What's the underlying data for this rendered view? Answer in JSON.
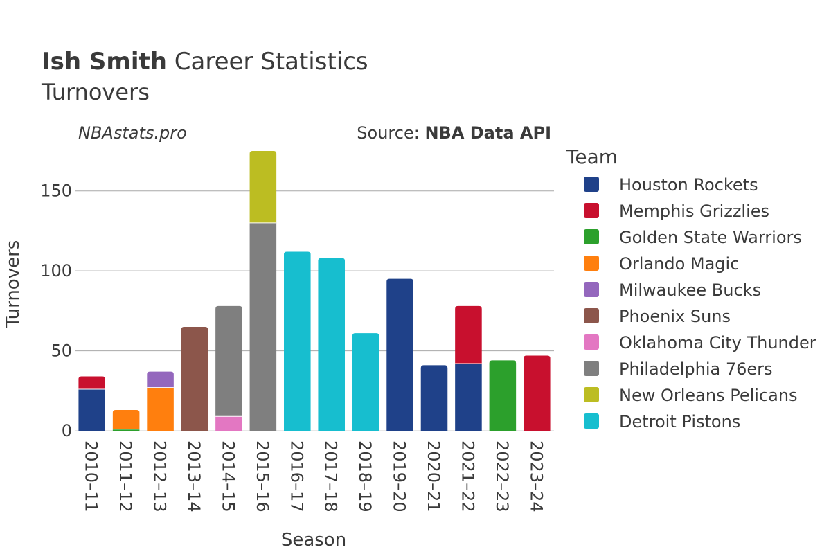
{
  "header": {
    "title_bold": "Ish Smith",
    "title_rest": " Career Statistics",
    "subtitle": "Turnovers",
    "credit": "NBAstats.pro",
    "source_prefix": "Source: ",
    "source_bold": "NBA Data API"
  },
  "legend": {
    "title": "Team"
  },
  "chart_data": {
    "type": "bar",
    "stacked": true,
    "xlabel": "Season",
    "ylabel": "Turnovers",
    "ylim": [
      0,
      175
    ],
    "yticks": [
      0,
      50,
      100,
      150
    ],
    "grid": true,
    "legend_position": "right",
    "categories": [
      "2010–11",
      "2011–12",
      "2012–13",
      "2013–14",
      "2014–15",
      "2015–16",
      "2016–17",
      "2017–18",
      "2018–19",
      "2019–20",
      "2020–21",
      "2021–22",
      "2022–23",
      "2023–24"
    ],
    "series": [
      {
        "name": "Houston Rockets",
        "color": "#1f4189",
        "values": [
          26,
          0,
          0,
          0,
          0,
          0,
          0,
          0,
          0,
          95,
          41,
          42,
          0,
          0
        ]
      },
      {
        "name": "Memphis Grizzlies",
        "color": "#c8102e",
        "values": [
          8,
          0,
          0,
          0,
          0,
          0,
          0,
          0,
          0,
          0,
          0,
          36,
          0,
          47
        ]
      },
      {
        "name": "Golden State Warriors",
        "color": "#2ca02c",
        "values": [
          0,
          1,
          0,
          0,
          0,
          0,
          0,
          0,
          0,
          0,
          0,
          0,
          44,
          0
        ]
      },
      {
        "name": "Orlando Magic",
        "color": "#ff7f0e",
        "values": [
          0,
          12,
          27,
          0,
          0,
          0,
          0,
          0,
          0,
          0,
          0,
          0,
          0,
          0
        ]
      },
      {
        "name": "Milwaukee Bucks",
        "color": "#9467bd",
        "values": [
          0,
          0,
          10,
          0,
          0,
          0,
          0,
          0,
          0,
          0,
          0,
          0,
          0,
          0
        ]
      },
      {
        "name": "Phoenix Suns",
        "color": "#8c564b",
        "values": [
          0,
          0,
          0,
          65,
          0,
          0,
          0,
          0,
          0,
          0,
          0,
          0,
          0,
          0
        ]
      },
      {
        "name": "Oklahoma City Thunder",
        "color": "#e377c2",
        "values": [
          0,
          0,
          0,
          0,
          9,
          0,
          0,
          0,
          0,
          0,
          0,
          0,
          0,
          0
        ]
      },
      {
        "name": "Philadelphia 76ers",
        "color": "#7f7f7f",
        "values": [
          0,
          0,
          0,
          0,
          69,
          130,
          0,
          0,
          0,
          0,
          0,
          0,
          0,
          0
        ]
      },
      {
        "name": "New Orleans Pelicans",
        "color": "#bcbd22",
        "values": [
          0,
          0,
          0,
          0,
          0,
          45,
          0,
          0,
          0,
          0,
          0,
          0,
          0,
          0
        ]
      },
      {
        "name": "Detroit Pistons",
        "color": "#17becf",
        "values": [
          0,
          0,
          0,
          0,
          0,
          0,
          112,
          108,
          61,
          0,
          0,
          0,
          0,
          0
        ]
      }
    ]
  }
}
